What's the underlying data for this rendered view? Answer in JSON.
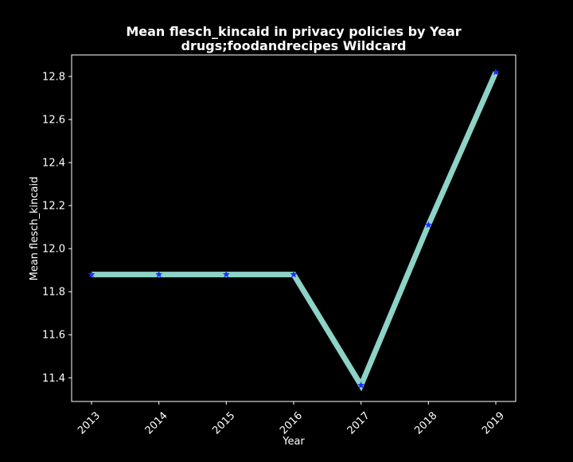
{
  "chart_data": {
    "type": "line",
    "title": "Mean flesch_kincaid in privacy policies by Year",
    "subtitle": "drugs;foodandrecipes Wildcard",
    "xlabel": "Year",
    "ylabel": "Mean flesch_kincaid",
    "categories": [
      "2013",
      "2014",
      "2015",
      "2016",
      "2017",
      "2018",
      "2019"
    ],
    "series": [
      {
        "values": [
          11.88,
          11.88,
          11.88,
          11.88,
          11.365,
          12.11,
          12.82
        ]
      }
    ],
    "ylim": [
      11.29,
      12.9
    ],
    "yticks": [
      "11.4",
      "11.6",
      "11.8",
      "12.0",
      "12.2",
      "12.4",
      "12.6",
      "12.8"
    ],
    "grid": false,
    "legend": "none",
    "colors": {
      "background": "#000000",
      "line": "#8dd3c7",
      "marker": "#1a2cff",
      "text": "#ffffff",
      "axes": "#ffffff"
    }
  }
}
